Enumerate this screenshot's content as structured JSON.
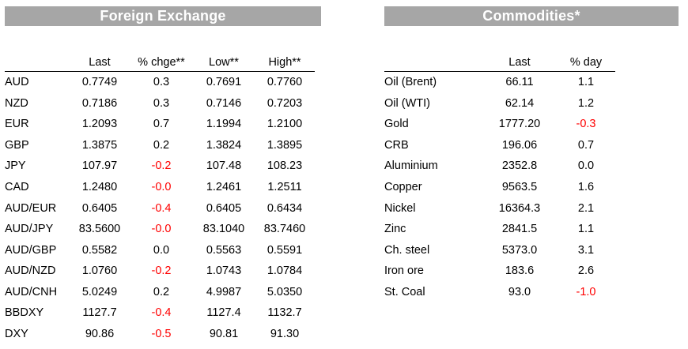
{
  "fx": {
    "title": "Foreign Exchange",
    "headers": [
      "",
      "Last",
      "% chge**",
      "Low**",
      "High**"
    ],
    "rows": [
      [
        "AUD",
        "0.7749",
        "0.3",
        "0.7691",
        "0.7760"
      ],
      [
        "NZD",
        "0.7186",
        "0.3",
        "0.7146",
        "0.7203"
      ],
      [
        "EUR",
        "1.2093",
        "0.7",
        "1.1994",
        "1.2100"
      ],
      [
        "GBP",
        "1.3875",
        "0.2",
        "1.3824",
        "1.3895"
      ],
      [
        "JPY",
        "107.97",
        "-0.2",
        "107.48",
        "108.23"
      ],
      [
        "CAD",
        "1.2480",
        "-0.0",
        "1.2461",
        "1.2511"
      ],
      [
        "AUD/EUR",
        "0.6405",
        "-0.4",
        "0.6405",
        "0.6434"
      ],
      [
        "AUD/JPY",
        "83.5600",
        "-0.0",
        "83.1040",
        "83.7460"
      ],
      [
        "AUD/GBP",
        "0.5582",
        "0.0",
        "0.5563",
        "0.5591"
      ],
      [
        "AUD/NZD",
        "1.0760",
        "-0.2",
        "1.0743",
        "1.0784"
      ],
      [
        "AUD/CNH",
        "5.0249",
        "0.2",
        "4.9987",
        "5.0350"
      ],
      [
        "BBDXY",
        "1127.7",
        "-0.4",
        "1127.4",
        "1132.7"
      ],
      [
        "DXY",
        "90.86",
        "-0.5",
        "90.81",
        "91.30"
      ]
    ]
  },
  "commodities": {
    "title": "Commodities*",
    "headers": [
      "",
      "Last",
      "% day"
    ],
    "rows": [
      [
        "Oil (Brent)",
        "66.11",
        "1.1"
      ],
      [
        "Oil (WTI)",
        "62.14",
        "1.2"
      ],
      [
        "Gold",
        "1777.20",
        "-0.3"
      ],
      [
        "CRB",
        "196.06",
        "0.7"
      ],
      [
        "Aluminium",
        "2352.8",
        "0.0"
      ],
      [
        "Copper",
        "9563.5",
        "1.6"
      ],
      [
        "Nickel",
        "16364.3",
        "2.1"
      ],
      [
        "Zinc",
        "2841.5",
        "1.1"
      ],
      [
        "Ch. steel",
        "5373.0",
        "3.1"
      ],
      [
        "Iron ore",
        "183.6",
        "2.6"
      ],
      [
        "St. Coal",
        "93.0",
        "-1.0"
      ]
    ]
  },
  "colors": {
    "banner": "#a6a6a6",
    "negative": "#ff0000"
  }
}
